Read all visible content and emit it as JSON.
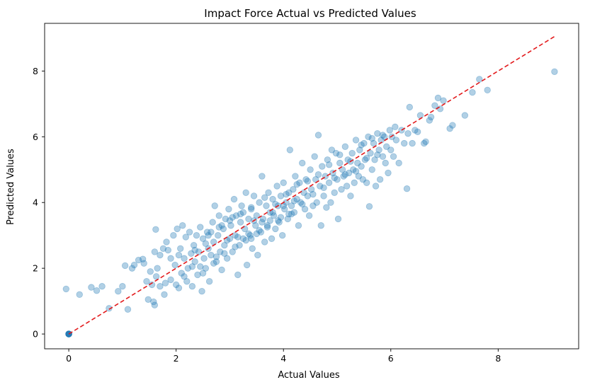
{
  "chart_data": {
    "type": "scatter",
    "title": "Impact Force Actual vs Predicted Values",
    "xlabel": "Actual Values",
    "ylabel": "Predicted Values",
    "xlim": [
      -0.45,
      9.5
    ],
    "ylim": [
      -0.45,
      9.45
    ],
    "xticks": [
      0,
      2,
      4,
      6,
      8
    ],
    "yticks": [
      0,
      2,
      4,
      6,
      8
    ],
    "grid": false,
    "legend": "none",
    "colors": {
      "points": "#1f77b4",
      "reference_line": "#e31a1c"
    },
    "point_alpha": 0.35,
    "reference_line": {
      "style": "dashed",
      "from": [
        0,
        0
      ],
      "to": [
        9.05,
        9.05
      ]
    },
    "series": [
      {
        "points": [
          [
            0,
            0
          ],
          [
            0,
            0
          ],
          [
            0,
            0
          ],
          [
            0,
            0
          ],
          [
            0,
            0
          ],
          [
            0,
            0
          ],
          [
            0,
            0
          ],
          [
            0,
            0
          ],
          [
            -0.05,
            1.37
          ],
          [
            0.2,
            1.2
          ],
          [
            0.42,
            1.42
          ],
          [
            0.52,
            1.32
          ],
          [
            0.62,
            1.45
          ],
          [
            0.75,
            0.78
          ],
          [
            0.92,
            1.3
          ],
          [
            1.0,
            1.45
          ],
          [
            1.1,
            0.75
          ],
          [
            1.05,
            2.08
          ],
          [
            1.18,
            2.0
          ],
          [
            1.22,
            2.1
          ],
          [
            1.3,
            2.25
          ],
          [
            1.38,
            2.28
          ],
          [
            1.4,
            2.15
          ],
          [
            1.45,
            1.6
          ],
          [
            1.48,
            1.05
          ],
          [
            1.52,
            1.9
          ],
          [
            1.55,
            1.5
          ],
          [
            1.58,
            0.98
          ],
          [
            1.6,
            0.88
          ],
          [
            1.62,
            3.18
          ],
          [
            1.6,
            2.5
          ],
          [
            1.63,
            1.75
          ],
          [
            1.7,
            2.4
          ],
          [
            1.7,
            1.45
          ],
          [
            1.76,
            2.6
          ],
          [
            1.78,
            1.2
          ],
          [
            1.82,
            2.8
          ],
          [
            1.85,
            2.55
          ],
          [
            1.9,
            2.3
          ],
          [
            1.9,
            1.65
          ],
          [
            1.95,
            3.0
          ],
          [
            1.98,
            2.1
          ],
          [
            2.0,
            1.5
          ],
          [
            2.02,
            3.2
          ],
          [
            2.05,
            1.4
          ],
          [
            2.08,
            2.6
          ],
          [
            2.1,
            1.85
          ],
          [
            2.12,
            3.3
          ],
          [
            2.15,
            2.3
          ],
          [
            2.18,
            2.95
          ],
          [
            2.2,
            1.6
          ],
          [
            2.22,
            2.0
          ],
          [
            2.25,
            3.1
          ],
          [
            2.28,
            2.45
          ],
          [
            2.3,
            1.45
          ],
          [
            2.33,
            2.7
          ],
          [
            2.35,
            2.2
          ],
          [
            2.38,
            3.0
          ],
          [
            2.4,
            1.8
          ],
          [
            2.42,
            2.5
          ],
          [
            2.45,
            3.25
          ],
          [
            2.48,
            1.3
          ],
          [
            2.5,
            2.9
          ],
          [
            2.52,
            2.3
          ],
          [
            2.55,
            2.0
          ],
          [
            2.58,
            3.1
          ],
          [
            2.6,
            2.6
          ],
          [
            2.62,
            1.6
          ],
          [
            2.65,
            2.4
          ],
          [
            2.68,
            3.4
          ],
          [
            2.7,
            2.8
          ],
          [
            2.72,
            3.9
          ],
          [
            2.75,
            2.2
          ],
          [
            2.78,
            3.0
          ],
          [
            2.8,
            3.6
          ],
          [
            2.82,
            2.5
          ],
          [
            2.85,
            1.95
          ],
          [
            2.88,
            3.2
          ],
          [
            2.9,
            2.7
          ],
          [
            2.92,
            3.5
          ],
          [
            2.95,
            2.3
          ],
          [
            2.98,
            3.8
          ],
          [
            3.0,
            2.9
          ],
          [
            3.02,
            3.3
          ],
          [
            3.05,
            2.5
          ],
          [
            3.08,
            4.1
          ],
          [
            3.1,
            3.0
          ],
          [
            3.12,
            3.6
          ],
          [
            3.15,
            1.8
          ],
          [
            3.18,
            2.7
          ],
          [
            3.2,
            3.4
          ],
          [
            3.22,
            3.9
          ],
          [
            3.25,
            2.9
          ],
          [
            3.28,
            3.2
          ],
          [
            3.3,
            4.3
          ],
          [
            3.32,
            2.1
          ],
          [
            3.35,
            3.5
          ],
          [
            3.38,
            3.0
          ],
          [
            3.4,
            3.8
          ],
          [
            3.42,
            2.6
          ],
          [
            3.45,
            4.2
          ],
          [
            3.48,
            3.3
          ],
          [
            3.5,
            3.6
          ],
          [
            3.52,
            2.4
          ],
          [
            3.55,
            4.0
          ],
          [
            3.58,
            3.1
          ],
          [
            3.6,
            4.8
          ],
          [
            3.62,
            3.5
          ],
          [
            3.65,
            2.8
          ],
          [
            3.68,
            3.9
          ],
          [
            3.7,
            3.3
          ],
          [
            3.72,
            4.3
          ],
          [
            3.75,
            3.7
          ],
          [
            3.78,
            2.9
          ],
          [
            3.8,
            4.1
          ],
          [
            3.82,
            3.6
          ],
          [
            3.85,
            3.2
          ],
          [
            3.88,
            4.5
          ],
          [
            3.9,
            3.9
          ],
          [
            3.92,
            3.4
          ],
          [
            3.95,
            4.2
          ],
          [
            3.98,
            3.0
          ],
          [
            4.0,
            4.6
          ],
          [
            4.02,
            3.8
          ],
          [
            4.05,
            4.0
          ],
          [
            4.08,
            3.5
          ],
          [
            4.1,
            4.3
          ],
          [
            4.12,
            5.6
          ],
          [
            4.15,
            3.9
          ],
          [
            4.18,
            4.4
          ],
          [
            4.2,
            3.7
          ],
          [
            4.22,
            4.8
          ],
          [
            4.25,
            4.1
          ],
          [
            4.28,
            3.3
          ],
          [
            4.3,
            4.6
          ],
          [
            4.32,
            4.0
          ],
          [
            4.35,
            5.2
          ],
          [
            4.38,
            4.3
          ],
          [
            4.4,
            3.8
          ],
          [
            4.42,
            4.7
          ],
          [
            4.45,
            4.2
          ],
          [
            4.48,
            3.6
          ],
          [
            4.5,
            5.0
          ],
          [
            4.52,
            4.4
          ],
          [
            4.55,
            3.9
          ],
          [
            4.58,
            5.4
          ],
          [
            4.6,
            4.7
          ],
          [
            4.62,
            4.0
          ],
          [
            4.65,
            6.05
          ],
          [
            4.68,
            4.5
          ],
          [
            4.7,
            3.3
          ],
          [
            4.72,
            5.1
          ],
          [
            4.75,
            4.2
          ],
          [
            4.78,
            4.8
          ],
          [
            4.8,
            3.85
          ],
          [
            4.82,
            5.3
          ],
          [
            4.85,
            4.6
          ],
          [
            4.88,
            4.0
          ],
          [
            4.9,
            5.6
          ],
          [
            4.92,
            4.9
          ],
          [
            4.95,
            4.3
          ],
          [
            4.98,
            5.5
          ],
          [
            5.0,
            4.7
          ],
          [
            5.02,
            3.5
          ],
          [
            5.05,
            5.2
          ],
          [
            5.08,
            4.4
          ],
          [
            5.1,
            5.0
          ],
          [
            5.12,
            4.8
          ],
          [
            5.15,
            5.7
          ],
          [
            5.18,
            4.5
          ],
          [
            5.2,
            5.3
          ],
          [
            5.22,
            4.9
          ],
          [
            5.25,
            4.2
          ],
          [
            5.28,
            5.5
          ],
          [
            5.3,
            5.0
          ],
          [
            5.32,
            4.6
          ],
          [
            5.35,
            5.9
          ],
          [
            5.38,
            5.2
          ],
          [
            5.4,
            4.8
          ],
          [
            5.42,
            5.6
          ],
          [
            5.45,
            5.1
          ],
          [
            5.48,
            4.7
          ],
          [
            5.5,
            5.8
          ],
          [
            5.52,
            5.3
          ],
          [
            5.55,
            4.6
          ],
          [
            5.58,
            6.0
          ],
          [
            5.6,
            3.88
          ],
          [
            5.62,
            5.5
          ],
          [
            5.65,
            5.0
          ],
          [
            5.68,
            5.8
          ],
          [
            5.7,
            5.3
          ],
          [
            5.72,
            4.5
          ],
          [
            5.75,
            6.1
          ],
          [
            5.78,
            5.6
          ],
          [
            5.8,
            4.7
          ],
          [
            5.82,
            5.9
          ],
          [
            5.85,
            5.4
          ],
          [
            5.88,
            6.0
          ],
          [
            5.9,
            5.2
          ],
          [
            5.92,
            5.7
          ],
          [
            5.95,
            4.9
          ],
          [
            5.98,
            6.2
          ],
          [
            6.0,
            5.6
          ],
          [
            6.02,
            6.0
          ],
          [
            6.05,
            5.4
          ],
          [
            6.08,
            6.3
          ],
          [
            6.1,
            5.9
          ],
          [
            6.15,
            5.2
          ],
          [
            6.2,
            6.2
          ],
          [
            6.25,
            5.8
          ],
          [
            6.3,
            4.42
          ],
          [
            6.32,
            6.1
          ],
          [
            6.35,
            6.9
          ],
          [
            6.4,
            5.8
          ],
          [
            6.45,
            6.2
          ],
          [
            6.5,
            6.15
          ],
          [
            6.55,
            6.65
          ],
          [
            6.62,
            5.8
          ],
          [
            6.65,
            5.85
          ],
          [
            6.72,
            6.5
          ],
          [
            6.75,
            6.6
          ],
          [
            6.82,
            6.95
          ],
          [
            6.88,
            7.18
          ],
          [
            6.92,
            6.85
          ],
          [
            6.98,
            7.1
          ],
          [
            7.1,
            6.25
          ],
          [
            7.15,
            6.35
          ],
          [
            7.38,
            6.65
          ],
          [
            7.52,
            7.35
          ],
          [
            7.65,
            7.75
          ],
          [
            7.8,
            7.42
          ],
          [
            9.05,
            7.98
          ],
          [
            1.65,
            2.0
          ],
          [
            1.8,
            1.55
          ],
          [
            2.05,
            2.4
          ],
          [
            2.15,
            1.75
          ],
          [
            2.35,
            2.55
          ],
          [
            2.45,
            2.05
          ],
          [
            2.55,
            2.75
          ],
          [
            2.65,
            3.1
          ],
          [
            2.75,
            2.35
          ],
          [
            2.85,
            3.3
          ],
          [
            2.95,
            2.85
          ],
          [
            3.05,
            3.55
          ],
          [
            3.15,
            2.95
          ],
          [
            3.25,
            3.7
          ],
          [
            3.35,
            3.05
          ],
          [
            3.45,
            3.45
          ],
          [
            3.55,
            3.15
          ],
          [
            3.65,
            4.15
          ],
          [
            3.75,
            3.45
          ],
          [
            3.85,
            3.95
          ],
          [
            3.95,
            3.55
          ],
          [
            4.05,
            4.25
          ],
          [
            4.15,
            3.65
          ],
          [
            4.25,
            4.55
          ],
          [
            4.35,
            3.95
          ],
          [
            4.45,
            4.65
          ],
          [
            4.55,
            4.25
          ],
          [
            4.65,
            4.85
          ],
          [
            4.75,
            4.45
          ],
          [
            4.85,
            5.15
          ],
          [
            4.95,
            4.75
          ],
          [
            5.05,
            5.45
          ],
          [
            5.15,
            4.85
          ],
          [
            5.25,
            5.25
          ],
          [
            5.35,
            4.95
          ],
          [
            5.45,
            5.75
          ],
          [
            5.55,
            5.35
          ],
          [
            5.65,
            5.95
          ],
          [
            5.75,
            5.45
          ],
          [
            5.85,
            6.05
          ],
          [
            2.3,
            2.05
          ],
          [
            2.5,
            1.85
          ],
          [
            2.7,
            2.15
          ],
          [
            2.9,
            2.45
          ],
          [
            3.1,
            2.65
          ],
          [
            3.3,
            2.85
          ],
          [
            3.5,
            3.05
          ],
          [
            3.7,
            3.25
          ],
          [
            3.9,
            3.45
          ],
          [
            4.1,
            3.65
          ],
          [
            3.4,
            2.9
          ],
          [
            3.6,
            3.4
          ],
          [
            3.8,
            3.7
          ],
          [
            4.0,
            3.9
          ],
          [
            4.2,
            4.05
          ],
          [
            2.6,
            3.0
          ],
          [
            2.8,
            3.25
          ],
          [
            3.0,
            3.45
          ],
          [
            3.2,
            3.65
          ],
          [
            3.4,
            3.85
          ]
        ]
      }
    ]
  }
}
